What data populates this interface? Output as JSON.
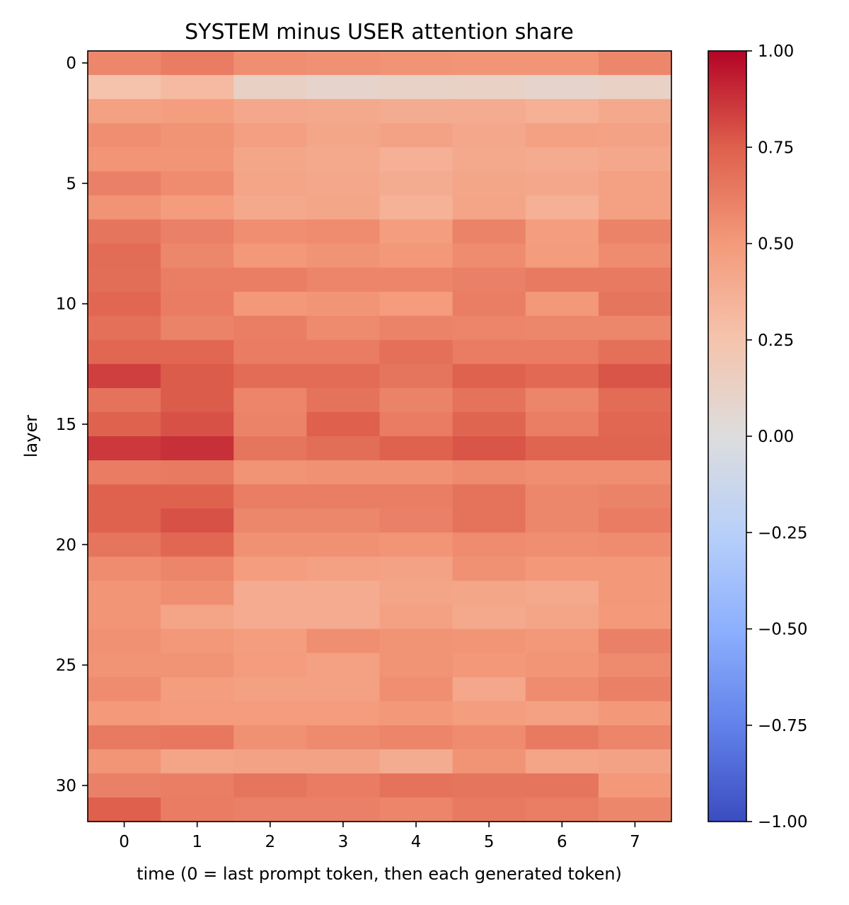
{
  "chart_data": {
    "type": "heatmap",
    "title": "SYSTEM minus USER attention share",
    "xlabel": "time (0 = last prompt token, then each generated token)",
    "ylabel": "layer",
    "x_ticks": [
      "0",
      "1",
      "2",
      "3",
      "4",
      "5",
      "6",
      "7"
    ],
    "y_ticks": [
      "0",
      "5",
      "10",
      "15",
      "20",
      "25",
      "30"
    ],
    "colormap": "coolwarm",
    "vmin": -1.0,
    "vmax": 1.0,
    "colorbar_ticks": [
      "1.00",
      "0.75",
      "0.50",
      "0.25",
      "0.00",
      "−0.25",
      "−0.50",
      "−0.75",
      "−1.00"
    ],
    "values": [
      [
        0.58,
        0.63,
        0.55,
        0.54,
        0.53,
        0.52,
        0.52,
        0.58
      ],
      [
        0.26,
        0.31,
        0.13,
        0.09,
        0.11,
        0.12,
        0.09,
        0.12
      ],
      [
        0.46,
        0.48,
        0.42,
        0.41,
        0.39,
        0.4,
        0.37,
        0.41
      ],
      [
        0.55,
        0.53,
        0.47,
        0.43,
        0.45,
        0.42,
        0.46,
        0.45
      ],
      [
        0.52,
        0.52,
        0.43,
        0.41,
        0.37,
        0.41,
        0.4,
        0.42
      ],
      [
        0.61,
        0.56,
        0.44,
        0.42,
        0.39,
        0.43,
        0.42,
        0.46
      ],
      [
        0.53,
        0.49,
        0.41,
        0.43,
        0.36,
        0.44,
        0.37,
        0.46
      ],
      [
        0.66,
        0.61,
        0.55,
        0.56,
        0.48,
        0.6,
        0.48,
        0.6
      ],
      [
        0.7,
        0.58,
        0.51,
        0.53,
        0.51,
        0.56,
        0.49,
        0.56
      ],
      [
        0.69,
        0.62,
        0.62,
        0.59,
        0.59,
        0.61,
        0.64,
        0.64
      ],
      [
        0.72,
        0.63,
        0.51,
        0.52,
        0.49,
        0.62,
        0.51,
        0.66
      ],
      [
        0.68,
        0.6,
        0.62,
        0.57,
        0.6,
        0.59,
        0.58,
        0.58
      ],
      [
        0.72,
        0.72,
        0.63,
        0.63,
        0.68,
        0.63,
        0.63,
        0.68
      ],
      [
        0.84,
        0.76,
        0.7,
        0.7,
        0.66,
        0.74,
        0.71,
        0.78
      ],
      [
        0.67,
        0.76,
        0.59,
        0.67,
        0.6,
        0.67,
        0.59,
        0.7
      ],
      [
        0.74,
        0.79,
        0.6,
        0.75,
        0.63,
        0.73,
        0.62,
        0.72
      ],
      [
        0.86,
        0.88,
        0.66,
        0.69,
        0.74,
        0.78,
        0.73,
        0.73
      ],
      [
        0.63,
        0.64,
        0.53,
        0.54,
        0.54,
        0.57,
        0.55,
        0.55
      ],
      [
        0.74,
        0.74,
        0.62,
        0.62,
        0.62,
        0.67,
        0.58,
        0.6
      ],
      [
        0.74,
        0.79,
        0.58,
        0.58,
        0.61,
        0.67,
        0.58,
        0.63
      ],
      [
        0.66,
        0.72,
        0.54,
        0.54,
        0.52,
        0.56,
        0.55,
        0.56
      ],
      [
        0.56,
        0.59,
        0.48,
        0.46,
        0.45,
        0.54,
        0.51,
        0.51
      ],
      [
        0.52,
        0.55,
        0.4,
        0.4,
        0.44,
        0.43,
        0.41,
        0.51
      ],
      [
        0.52,
        0.44,
        0.4,
        0.4,
        0.46,
        0.41,
        0.44,
        0.5
      ],
      [
        0.54,
        0.51,
        0.48,
        0.55,
        0.53,
        0.52,
        0.51,
        0.61
      ],
      [
        0.53,
        0.53,
        0.49,
        0.46,
        0.53,
        0.51,
        0.52,
        0.57
      ],
      [
        0.56,
        0.48,
        0.46,
        0.46,
        0.55,
        0.42,
        0.56,
        0.61
      ],
      [
        0.5,
        0.49,
        0.49,
        0.49,
        0.51,
        0.48,
        0.46,
        0.51
      ],
      [
        0.64,
        0.65,
        0.54,
        0.57,
        0.59,
        0.56,
        0.64,
        0.59
      ],
      [
        0.52,
        0.44,
        0.45,
        0.45,
        0.39,
        0.53,
        0.44,
        0.45
      ],
      [
        0.61,
        0.62,
        0.66,
        0.63,
        0.67,
        0.66,
        0.66,
        0.51
      ],
      [
        0.75,
        0.63,
        0.61,
        0.61,
        0.59,
        0.64,
        0.62,
        0.58
      ]
    ]
  }
}
